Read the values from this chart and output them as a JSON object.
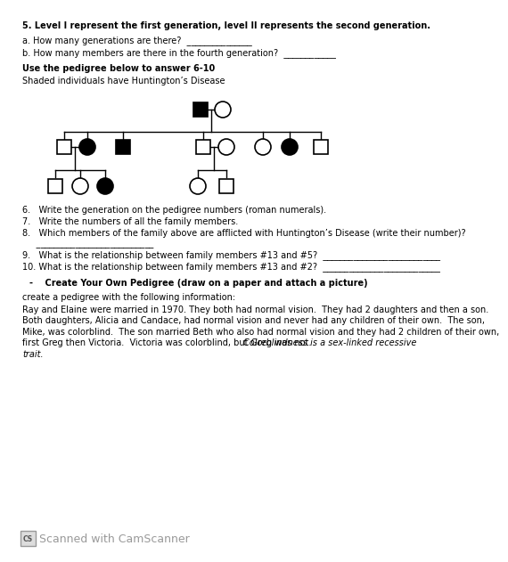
{
  "bg_color": "#ffffff",
  "title_line": "5. Level I represent the first generation, level II represents the second generation.",
  "q_a": "a. How many generations are there?  _______________",
  "q_b": "b. How many members are there in the fourth generation?  ____________",
  "section2_title": "Use the pedigree below to answer 6-10",
  "section2_sub": "Shaded individuals have Huntington’s Disease",
  "q6": "6.   Write the generation on the pedigree numbers (roman numerals).",
  "q7": "7.   Write the numbers of all the family members.",
  "q8": "8.   Which members of the family above are afflicted with Huntington’s Disease (write their number)?",
  "q8b": "     ___________________________",
  "q9": "9.   What is the relationship between family members #13 and #5?  ___________________________",
  "q10": "10. What is the relationship between family members #13 and #2?  ___________________________",
  "section3_title": "-    Create Your Own Pedigree (draw on a paper and attach a picture)",
  "section3_intro": "create a pedigree with the following information:",
  "body1": "Ray and Elaine were married in 1970. They both had normal vision.  They had 2 daughters and then a son.",
  "body2": "Both daughters, Alicia and Candace, had normal vision and never had any children of their own.  The son,",
  "body3": "Mike, was colorblind.  The son married Beth who also had normal vision and they had 2 children of their own,",
  "body4": "first Greg then Victoria.  Victoria was colorblind, but Greg was not. ",
  "body4_italic": "Colorblindness is a sex-linked recessive",
  "body5_italic": "trait.",
  "scanner_text": "Scanned with CamScanner"
}
